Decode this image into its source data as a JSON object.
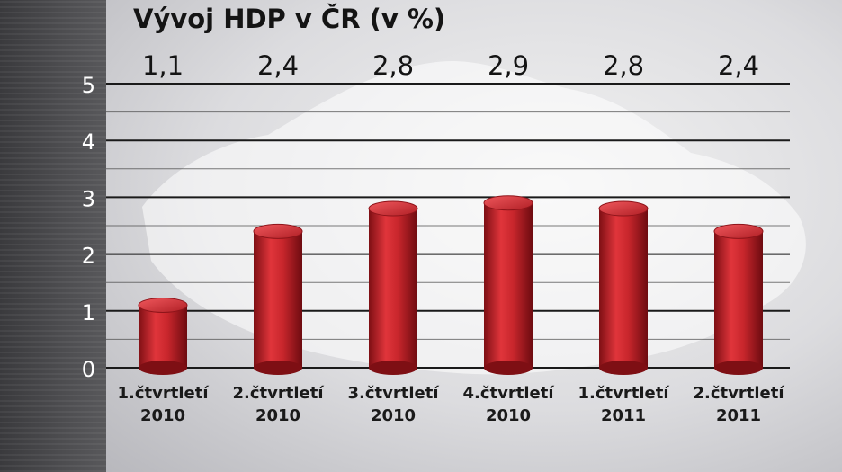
{
  "chart_data": {
    "type": "bar",
    "title": "Vývoj HDP v ČR (v %)",
    "categories": [
      [
        "1.čtvrtletí",
        "2010"
      ],
      [
        "2.čtvrtletí",
        "2010"
      ],
      [
        "3.čtvrtletí",
        "2010"
      ],
      [
        "4.čtvrtletí",
        "2010"
      ],
      [
        "1.čtvrtletí",
        "2011"
      ],
      [
        "2.čtvrtletí",
        "2011"
      ]
    ],
    "values": [
      1.1,
      2.4,
      2.8,
      2.9,
      2.8,
      2.4
    ],
    "value_labels": [
      "1,1",
      "2,4",
      "2,8",
      "2,9",
      "2,8",
      "2,4"
    ],
    "y_ticks": [
      0,
      1,
      2,
      3,
      4,
      5
    ],
    "ylim": [
      0,
      5
    ],
    "grid": true,
    "bar_color": "#c8262c",
    "xlabel": "",
    "ylabel": ""
  }
}
